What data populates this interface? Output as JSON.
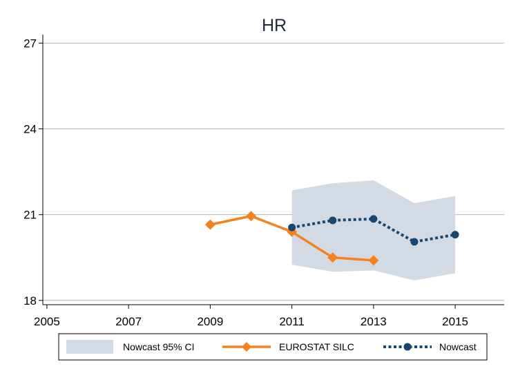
{
  "chart_data": {
    "type": "line",
    "title": "HR",
    "xlabel": "",
    "ylabel": "",
    "xlim": [
      2004.9,
      2016.2
    ],
    "ylim": [
      17.85,
      27.3
    ],
    "x_ticks": [
      2005,
      2007,
      2009,
      2011,
      2013,
      2015
    ],
    "y_ticks": [
      18,
      21,
      24,
      27
    ],
    "grid": "horizontal",
    "legend_position": "bottom",
    "colors": {
      "band": "#d3dae3",
      "eurostat": "#f5821f",
      "nowcast": "#1a476f",
      "grid": "#b4b4b4",
      "axis": "#000000",
      "title": "#1e2a3a"
    },
    "series": [
      {
        "name": "Nowcast 95% CI",
        "kind": "band",
        "x": [
          2011,
          2012,
          2013,
          2014,
          2015
        ],
        "lower": [
          19.25,
          19.0,
          19.05,
          18.7,
          18.95
        ],
        "upper": [
          21.85,
          22.1,
          22.2,
          21.4,
          21.65
        ]
      },
      {
        "name": "EUROSTAT SILC",
        "kind": "line",
        "marker": "diamond",
        "x": [
          2009,
          2010,
          2011,
          2012,
          2013
        ],
        "y": [
          20.65,
          20.95,
          20.4,
          19.5,
          19.4
        ]
      },
      {
        "name": "Nowcast",
        "kind": "line",
        "style": "dotted",
        "marker": "circle",
        "x": [
          2011,
          2012,
          2013,
          2014,
          2015
        ],
        "y": [
          20.55,
          20.8,
          20.85,
          20.05,
          20.3
        ]
      }
    ]
  }
}
